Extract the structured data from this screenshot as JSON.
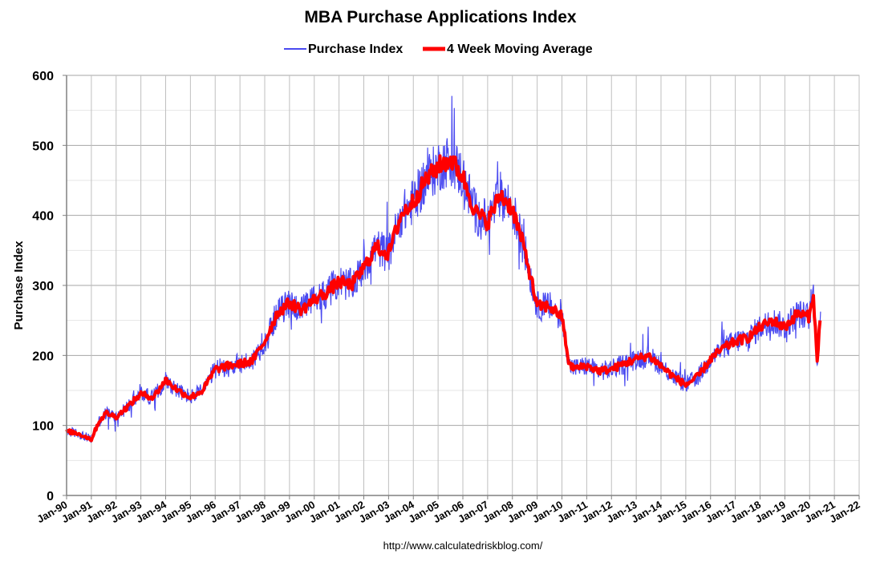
{
  "chart_data": {
    "type": "line",
    "title": "MBA Purchase Applications Index",
    "ylabel": "Purchase Index",
    "xlabel": "",
    "ylim": [
      0,
      600
    ],
    "yticks": [
      0,
      100,
      200,
      300,
      400,
      500,
      600
    ],
    "xlim": [
      1990,
      2022
    ],
    "xtick_labels": [
      "Jan-90",
      "Jan-91",
      "Jan-92",
      "Jan-93",
      "Jan-94",
      "Jan-95",
      "Jan-96",
      "Jan-97",
      "Jan-98",
      "Jan-99",
      "Jan-00",
      "Jan-01",
      "Jan-02",
      "Jan-03",
      "Jan-04",
      "Jan-05",
      "Jan-06",
      "Jan-07",
      "Jan-08",
      "Jan-09",
      "Jan-10",
      "Jan-11",
      "Jan-12",
      "Jan-13",
      "Jan-14",
      "Jan-15",
      "Jan-16",
      "Jan-17",
      "Jan-18",
      "Jan-19",
      "Jan-20",
      "Jan-21",
      "Jan-22"
    ],
    "grid": true,
    "legend": "top-center",
    "series": [
      {
        "name": "Purchase Index",
        "color": "#4a4af0",
        "style": "thin-noisy",
        "x": [
          1990.0,
          1990.5,
          1991.0,
          1991.3,
          1991.6,
          1992.0,
          1992.5,
          1993.0,
          1993.5,
          1994.0,
          1994.5,
          1995.0,
          1995.5,
          1996.0,
          1996.5,
          1997.0,
          1997.5,
          1998.0,
          1998.5,
          1999.0,
          1999.5,
          2000.0,
          2000.5,
          2001.0,
          2001.5,
          2002.0,
          2002.5,
          2003.0,
          2003.5,
          2004.0,
          2004.5,
          2005.0,
          2005.5,
          2006.0,
          2006.5,
          2007.0,
          2007.5,
          2008.0,
          2008.5,
          2009.0,
          2009.5,
          2010.0,
          2010.3,
          2010.6,
          2011.0,
          2011.5,
          2012.0,
          2012.5,
          2013.0,
          2013.5,
          2014.0,
          2014.5,
          2015.0,
          2015.5,
          2016.0,
          2016.5,
          2017.0,
          2017.5,
          2018.0,
          2018.5,
          2019.0,
          2019.5,
          2020.0,
          2020.15,
          2020.3,
          2020.45
        ],
        "values": [
          92,
          88,
          80,
          105,
          118,
          112,
          128,
          145,
          140,
          165,
          150,
          140,
          150,
          180,
          185,
          188,
          192,
          220,
          260,
          275,
          265,
          280,
          290,
          305,
          300,
          325,
          355,
          345,
          400,
          420,
          450,
          470,
          480,
          455,
          405,
          390,
          430,
          410,
          350,
          270,
          270,
          255,
          185,
          182,
          185,
          178,
          180,
          188,
          195,
          200,
          185,
          170,
          158,
          170,
          195,
          210,
          220,
          225,
          240,
          250,
          240,
          260,
          255,
          290,
          190,
          265
        ]
      },
      {
        "name": "4 Week Moving Average",
        "color": "#ff0000",
        "style": "thick-smooth",
        "x": [
          1990.0,
          1990.5,
          1991.0,
          1991.3,
          1991.6,
          1992.0,
          1992.5,
          1993.0,
          1993.5,
          1994.0,
          1994.5,
          1995.0,
          1995.5,
          1996.0,
          1996.5,
          1997.0,
          1997.5,
          1998.0,
          1998.5,
          1999.0,
          1999.5,
          2000.0,
          2000.5,
          2001.0,
          2001.5,
          2002.0,
          2002.5,
          2003.0,
          2003.5,
          2004.0,
          2004.5,
          2005.0,
          2005.5,
          2006.0,
          2006.5,
          2007.0,
          2007.5,
          2008.0,
          2008.5,
          2009.0,
          2009.5,
          2010.0,
          2010.3,
          2010.6,
          2011.0,
          2011.5,
          2012.0,
          2012.5,
          2013.0,
          2013.5,
          2014.0,
          2014.5,
          2015.0,
          2015.5,
          2016.0,
          2016.5,
          2017.0,
          2017.5,
          2018.0,
          2018.5,
          2019.0,
          2019.5,
          2020.0,
          2020.15,
          2020.3,
          2020.45
        ],
        "values": [
          92,
          88,
          80,
          105,
          118,
          112,
          128,
          145,
          140,
          165,
          150,
          140,
          150,
          180,
          185,
          188,
          192,
          220,
          260,
          275,
          265,
          280,
          290,
          305,
          300,
          325,
          355,
          345,
          400,
          420,
          450,
          470,
          480,
          455,
          405,
          390,
          430,
          410,
          350,
          270,
          270,
          255,
          185,
          182,
          185,
          178,
          180,
          188,
          195,
          200,
          185,
          170,
          158,
          170,
          195,
          210,
          220,
          225,
          240,
          250,
          240,
          260,
          255,
          290,
          190,
          265
        ]
      }
    ],
    "source": "http://www.calculatedriskblog.com/"
  }
}
